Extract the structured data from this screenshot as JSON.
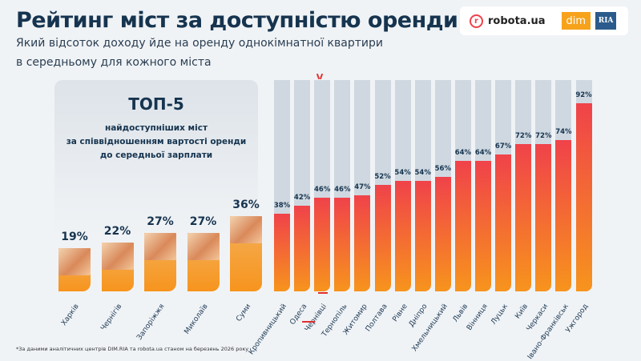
{
  "header": {
    "title": "Рейтинг міст за доступністю оренди",
    "subtitle_line1": "Який відсоток доходу йде на оренду однокімнатної квартири",
    "subtitle_line2": "в середньому для кожного міста"
  },
  "logos": {
    "robota": "robota.ua",
    "robota_mark": "r",
    "dim": "dim",
    "ria": "RIA"
  },
  "top5": {
    "heading": "ТОП-5",
    "desc_line1": "найдоступніших міст",
    "desc_line2": "за співвідношенням вартості оренди",
    "desc_line3": "до середньої зарплати"
  },
  "chart_data": {
    "type": "bar",
    "unit": "%",
    "ylim": [
      0,
      100
    ],
    "categories": [
      "Харків",
      "Чернігів",
      "Запоріжжя",
      "Миколаїв",
      "Суми",
      "Кропивницький",
      "Одеса",
      "Чернівці",
      "Тернопіль",
      "Житомир",
      "Полтава",
      "Рівне",
      "Дніпро",
      "Хмельницький",
      "Львів",
      "Вінниця",
      "Луцьк",
      "Київ",
      "Черкаси",
      "Івано-Франківськ",
      "Ужгород"
    ],
    "values": [
      19,
      22,
      27,
      27,
      36,
      38,
      42,
      46,
      46,
      47,
      52,
      54,
      54,
      56,
      64,
      64,
      67,
      72,
      72,
      74,
      92
    ],
    "labels": [
      "19%",
      "22%",
      "27%",
      "27%",
      "36%",
      "38%",
      "42%",
      "46%",
      "46%",
      "47%",
      "52%",
      "54%",
      "54%",
      "56%",
      "64%",
      "64%",
      "67%",
      "72%",
      "72%",
      "74%",
      "92%"
    ],
    "top5_count": 5,
    "colors": {
      "top5": "#f7941d",
      "fill_top": "#f0424a",
      "fill_bottom": "#f7941d",
      "track": "#cfd8e0"
    }
  },
  "footnote": "*За даними аналітичних центрів DIM.RIA та robota.ua станом на березень 2026 року"
}
